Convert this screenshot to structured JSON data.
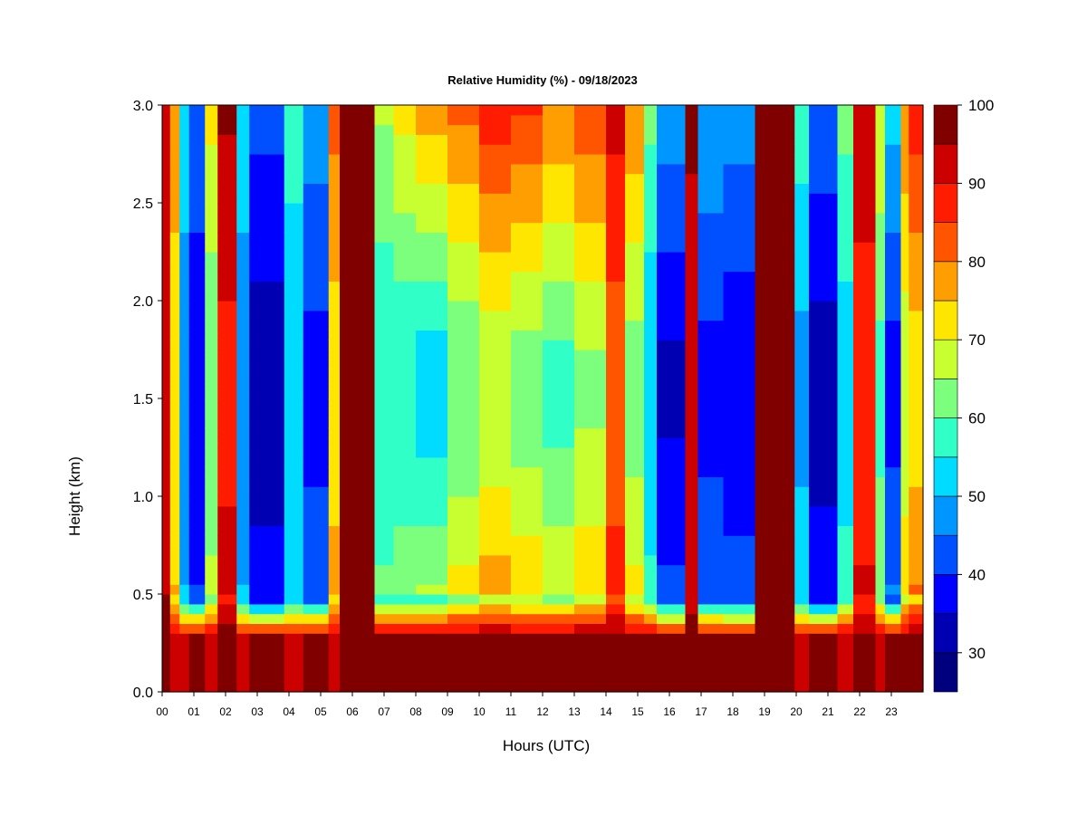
{
  "chart_data": {
    "type": "heatmap",
    "title": "Relative Humidity (%) - 09/18/2023",
    "xlabel": "Hours (UTC)",
    "ylabel": "Height (km)",
    "x_ticks": [
      "00",
      "01",
      "02",
      "03",
      "04",
      "05",
      "06",
      "07",
      "08",
      "09",
      "10",
      "11",
      "12",
      "13",
      "14",
      "15",
      "16",
      "17",
      "18",
      "19",
      "20",
      "21",
      "22",
      "23"
    ],
    "y_ticks": [
      "0.0",
      "0.5",
      "1.0",
      "1.5",
      "2.0",
      "2.5",
      "3.0"
    ],
    "xlim": [
      0,
      24
    ],
    "ylim": [
      0,
      3.0
    ],
    "colorbar": {
      "label_values": [
        "30",
        "40",
        "50",
        "60",
        "70",
        "80",
        "90",
        "100"
      ],
      "range": [
        25,
        100
      ],
      "levels": [
        25,
        30,
        35,
        40,
        45,
        50,
        55,
        60,
        65,
        70,
        75,
        80,
        85,
        90,
        95,
        100
      ],
      "colors": [
        "#00007F",
        "#0000B2",
        "#0000FF",
        "#0050FF",
        "#0096FF",
        "#00DCFF",
        "#30FFC8",
        "#7CFF7C",
        "#C8FF30",
        "#FFE600",
        "#FF9E00",
        "#FF5500",
        "#FF1C00",
        "#CD0000",
        "#800000"
      ]
    },
    "time_columns": [
      {
        "start_hour": 0.0,
        "end_hour": 0.25,
        "upper_rh": 92,
        "middle_rh": 95,
        "lower_rh": 98
      },
      {
        "start_hour": 0.25,
        "end_hour": 0.55,
        "upper_rh": 78,
        "middle_rh": 72,
        "lower_rh": 90
      },
      {
        "start_hour": 0.55,
        "end_hour": 0.85,
        "upper_rh": 55,
        "middle_rh": 45,
        "lower_rh": 92
      },
      {
        "start_hour": 0.85,
        "end_hour": 1.35,
        "upper_rh": 45,
        "middle_rh": 35,
        "lower_rh": 97
      },
      {
        "start_hour": 1.35,
        "end_hour": 1.75,
        "upper_rh": 72,
        "middle_rh": 60,
        "lower_rh": 92
      },
      {
        "start_hour": 1.75,
        "end_hour": 2.35,
        "upper_rh": 96,
        "middle_rh": 88,
        "lower_rh": 97
      },
      {
        "start_hour": 2.35,
        "end_hour": 2.75,
        "upper_rh": 52,
        "middle_rh": 48,
        "lower_rh": 94
      },
      {
        "start_hour": 2.75,
        "end_hour": 3.85,
        "upper_rh": 42,
        "middle_rh": 32,
        "lower_rh": 97
      },
      {
        "start_hour": 3.85,
        "end_hour": 4.45,
        "upper_rh": 58,
        "middle_rh": 50,
        "lower_rh": 93
      },
      {
        "start_hour": 4.45,
        "end_hour": 5.25,
        "upper_rh": 48,
        "middle_rh": 38,
        "lower_rh": 95
      },
      {
        "start_hour": 5.25,
        "end_hour": 5.6,
        "upper_rh": 82,
        "middle_rh": 72,
        "lower_rh": 93
      },
      {
        "start_hour": 5.6,
        "end_hour": 6.7,
        "upper_rh": 99,
        "middle_rh": 98,
        "lower_rh": 99
      },
      {
        "start_hour": 6.7,
        "end_hour": 7.3,
        "upper_rh": 66,
        "middle_rh": 55,
        "lower_rh": 96
      },
      {
        "start_hour": 7.3,
        "end_hour": 8.0,
        "upper_rh": 72,
        "middle_rh": 55,
        "lower_rh": 97
      },
      {
        "start_hour": 8.0,
        "end_hour": 9.0,
        "upper_rh": 78,
        "middle_rh": 52,
        "lower_rh": 97
      },
      {
        "start_hour": 9.0,
        "end_hour": 10.0,
        "upper_rh": 82,
        "middle_rh": 60,
        "lower_rh": 97
      },
      {
        "start_hour": 10.0,
        "end_hour": 11.0,
        "upper_rh": 88,
        "middle_rh": 66,
        "lower_rh": 98
      },
      {
        "start_hour": 11.0,
        "end_hour": 12.0,
        "upper_rh": 86,
        "middle_rh": 62,
        "lower_rh": 97
      },
      {
        "start_hour": 12.0,
        "end_hour": 13.0,
        "upper_rh": 80,
        "middle_rh": 58,
        "lower_rh": 97
      },
      {
        "start_hour": 13.0,
        "end_hour": 14.0,
        "upper_rh": 84,
        "middle_rh": 64,
        "lower_rh": 97
      },
      {
        "start_hour": 14.0,
        "end_hour": 14.6,
        "upper_rh": 92,
        "middle_rh": 82,
        "lower_rh": 98
      },
      {
        "start_hour": 14.6,
        "end_hour": 15.2,
        "upper_rh": 80,
        "middle_rh": 62,
        "lower_rh": 97
      },
      {
        "start_hour": 15.2,
        "end_hour": 15.6,
        "upper_rh": 62,
        "middle_rh": 50,
        "lower_rh": 95
      },
      {
        "start_hour": 15.6,
        "end_hour": 16.5,
        "upper_rh": 48,
        "middle_rh": 34,
        "lower_rh": 96
      },
      {
        "start_hour": 16.5,
        "end_hour": 16.9,
        "upper_rh": 96,
        "middle_rh": 92,
        "lower_rh": 98
      },
      {
        "start_hour": 16.9,
        "end_hour": 17.7,
        "upper_rh": 50,
        "middle_rh": 38,
        "lower_rh": 95
      },
      {
        "start_hour": 17.7,
        "end_hour": 18.7,
        "upper_rh": 48,
        "middle_rh": 36,
        "lower_rh": 95
      },
      {
        "start_hour": 18.7,
        "end_hour": 19.95,
        "upper_rh": 99,
        "middle_rh": 98,
        "lower_rh": 99
      },
      {
        "start_hour": 19.95,
        "end_hour": 20.4,
        "upper_rh": 58,
        "middle_rh": 48,
        "lower_rh": 94
      },
      {
        "start_hour": 20.4,
        "end_hour": 21.3,
        "upper_rh": 44,
        "middle_rh": 32,
        "lower_rh": 96
      },
      {
        "start_hour": 21.3,
        "end_hour": 21.8,
        "upper_rh": 62,
        "middle_rh": 52,
        "lower_rh": 94
      },
      {
        "start_hour": 21.8,
        "end_hour": 22.5,
        "upper_rh": 95,
        "middle_rh": 86,
        "lower_rh": 97
      },
      {
        "start_hour": 22.5,
        "end_hour": 22.8,
        "upper_rh": 70,
        "middle_rh": 58,
        "lower_rh": 94
      },
      {
        "start_hour": 22.8,
        "end_hour": 23.3,
        "upper_rh": 52,
        "middle_rh": 38,
        "lower_rh": 95
      },
      {
        "start_hour": 23.3,
        "end_hour": 23.55,
        "upper_rh": 80,
        "middle_rh": 66,
        "lower_rh": 95
      },
      {
        "start_hour": 23.55,
        "end_hour": 24.0,
        "upper_rh": 88,
        "middle_rh": 72,
        "lower_rh": 96
      }
    ]
  }
}
